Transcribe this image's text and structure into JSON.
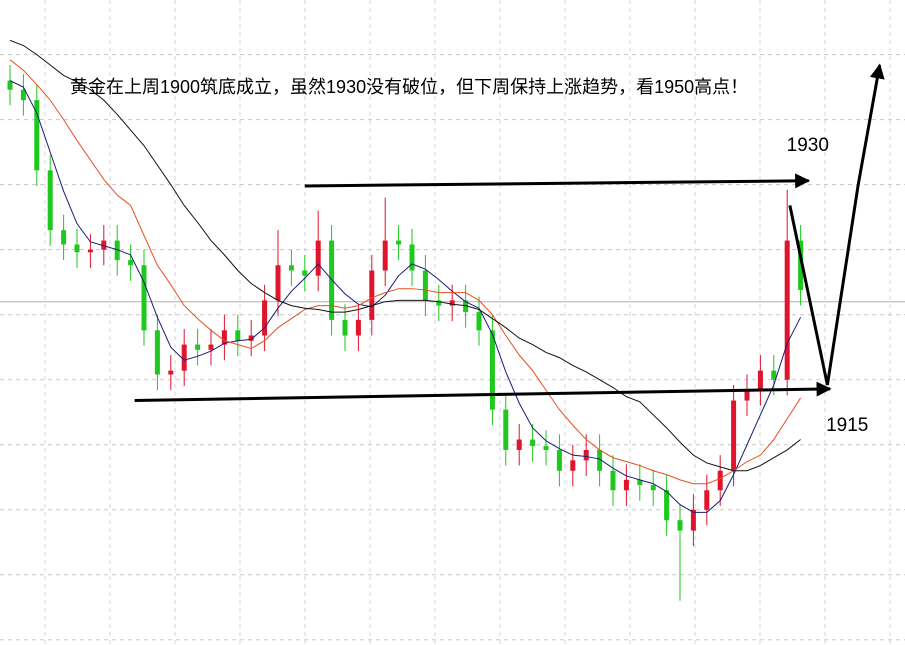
{
  "chart_data": {
    "type": "candlestick",
    "title": "黄金在上周1900筑底成立，虽然1930没有破位，但下周保持上涨趋势，看1950高点！",
    "ylim": [
      1894.6,
      1944.2
    ],
    "grid_levels": [
      1940,
      1935,
      1930,
      1925,
      1920,
      1915,
      1910,
      1905,
      1900,
      1895
    ],
    "price_line": 1921.0,
    "up_color": "#e0142c",
    "down_color": "#1ec81e",
    "open": [
      1938.0,
      1937.3,
      1936.5,
      1931.1,
      1926.5,
      1925.4,
      1924.8,
      1925.0,
      1925.7,
      1924.2,
      1923.8,
      1918.8,
      1915.4,
      1915.7,
      1917.7,
      1917.3,
      1917.7,
      1918.8,
      1918.0,
      1918.4,
      1921.1,
      1923.8,
      1923.4,
      1923.0,
      1925.7,
      1919.6,
      1918.4,
      1919.6,
      1923.4,
      1925.7,
      1925.4,
      1923.4,
      1921.1,
      1920.7,
      1921.1,
      1920.2,
      1918.8,
      1912.7,
      1909.6,
      1910.4,
      1909.9,
      1909.6,
      1908.0,
      1908.8,
      1909.6,
      1908.0,
      1906.5,
      1907.3,
      1906.9,
      1906.5,
      1904.2,
      1903.4,
      1905.0,
      1906.5,
      1908.0,
      1913.4,
      1914.2,
      1915.7,
      1915.0,
      1925.7
    ],
    "high": [
      1939.2,
      1938.5,
      1937.7,
      1932.3,
      1927.7,
      1926.6,
      1926.2,
      1926.9,
      1926.9,
      1925.4,
      1925.0,
      1920.0,
      1916.9,
      1918.9,
      1918.9,
      1918.9,
      1920.0,
      1920.0,
      1919.6,
      1922.3,
      1926.5,
      1925.0,
      1924.6,
      1928.0,
      1926.9,
      1920.8,
      1920.8,
      1924.6,
      1929.0,
      1926.9,
      1926.6,
      1924.6,
      1922.3,
      1922.3,
      1922.3,
      1921.4,
      1920.0,
      1913.9,
      1911.6,
      1911.6,
      1911.1,
      1910.8,
      1910.0,
      1910.8,
      1910.8,
      1909.2,
      1908.5,
      1908.5,
      1908.1,
      1907.7,
      1905.4,
      1906.2,
      1907.7,
      1909.2,
      1914.6,
      1915.4,
      1916.9,
      1916.9,
      1929.6,
      1926.9
    ],
    "low": [
      1936.1,
      1935.3,
      1929.9,
      1925.3,
      1924.2,
      1923.6,
      1923.6,
      1923.8,
      1923.0,
      1922.6,
      1917.6,
      1914.2,
      1914.2,
      1914.5,
      1916.1,
      1916.1,
      1916.5,
      1916.8,
      1916.8,
      1917.2,
      1919.9,
      1922.2,
      1921.8,
      1921.8,
      1918.4,
      1917.2,
      1917.2,
      1918.4,
      1922.2,
      1924.2,
      1922.2,
      1919.9,
      1919.5,
      1919.5,
      1919.0,
      1917.6,
      1911.5,
      1908.4,
      1908.4,
      1908.7,
      1908.4,
      1906.8,
      1906.8,
      1907.6,
      1906.8,
      1905.3,
      1905.3,
      1905.7,
      1905.3,
      1903.0,
      1898.0,
      1902.2,
      1903.8,
      1905.3,
      1906.8,
      1912.2,
      1913.0,
      1913.8,
      1913.8,
      1920.7
    ],
    "close": [
      1937.3,
      1936.5,
      1931.1,
      1926.5,
      1925.4,
      1924.8,
      1925.0,
      1925.7,
      1924.2,
      1923.8,
      1918.8,
      1915.4,
      1915.7,
      1917.7,
      1917.3,
      1917.7,
      1918.8,
      1918.0,
      1918.4,
      1921.1,
      1923.8,
      1923.4,
      1923.0,
      1925.7,
      1919.6,
      1918.4,
      1919.6,
      1923.4,
      1925.7,
      1925.4,
      1923.4,
      1921.1,
      1920.7,
      1921.1,
      1920.2,
      1918.8,
      1912.7,
      1909.6,
      1910.4,
      1909.9,
      1909.6,
      1908.0,
      1908.8,
      1909.6,
      1908.0,
      1906.5,
      1907.3,
      1906.9,
      1906.5,
      1904.2,
      1903.4,
      1905.0,
      1906.5,
      1908.0,
      1913.4,
      1914.2,
      1915.7,
      1915.0,
      1925.7,
      1921.9
    ],
    "moving_averages": [
      {
        "color": "#1a1a7a",
        "values": [
          1938.0,
          1937.5,
          1935.5,
          1932.5,
          1929.5,
          1927.0,
          1925.6,
          1925.3,
          1925.0,
          1924.6,
          1922.5,
          1919.8,
          1917.5,
          1916.5,
          1916.8,
          1917.2,
          1917.8,
          1918.0,
          1918.1,
          1919.0,
          1920.5,
          1921.8,
          1922.8,
          1923.9,
          1922.7,
          1921.6,
          1920.8,
          1920.6,
          1921.5,
          1923.0,
          1923.9,
          1923.5,
          1922.7,
          1921.8,
          1921.0,
          1920.5,
          1918.5,
          1915.6,
          1913.2,
          1911.3,
          1910.3,
          1909.7,
          1909.2,
          1909.1,
          1908.9,
          1908.2,
          1907.6,
          1907.3,
          1907.0,
          1906.4,
          1905.4,
          1904.8,
          1904.8,
          1905.7,
          1907.7,
          1910.0,
          1912.3,
          1914.6,
          1917.8,
          1919.8
        ]
      },
      {
        "color": "#e8501e",
        "values": [
          1939.6,
          1938.8,
          1937.7,
          1936.5,
          1935.0,
          1933.4,
          1931.9,
          1930.4,
          1929.2,
          1928.4,
          1926.1,
          1923.8,
          1922.3,
          1920.7,
          1919.7,
          1918.8,
          1918.0,
          1917.7,
          1917.4,
          1918.0,
          1919.0,
          1919.7,
          1920.4,
          1920.7,
          1920.7,
          1920.5,
          1920.7,
          1921.3,
          1921.7,
          1922.0,
          1922.0,
          1921.9,
          1921.7,
          1921.7,
          1921.7,
          1921.1,
          1920.0,
          1918.4,
          1916.9,
          1915.7,
          1914.2,
          1912.7,
          1911.5,
          1910.4,
          1909.6,
          1909.0,
          1908.7,
          1908.4,
          1908.0,
          1907.7,
          1907.3,
          1907.0,
          1907.0,
          1907.4,
          1908.0,
          1908.7,
          1909.2,
          1910.4,
          1912.0,
          1913.6
        ]
      },
      {
        "color": "#111111",
        "values": [
          1941.1,
          1940.7,
          1940.0,
          1939.2,
          1938.4,
          1937.9,
          1937.3,
          1936.5,
          1935.4,
          1934.2,
          1933.0,
          1931.5,
          1930.0,
          1928.4,
          1927.1,
          1925.7,
          1924.6,
          1923.4,
          1922.4,
          1921.7,
          1921.1,
          1920.7,
          1920.5,
          1920.4,
          1920.2,
          1920.2,
          1920.4,
          1920.7,
          1921.0,
          1921.1,
          1921.1,
          1921.1,
          1921.0,
          1920.8,
          1920.7,
          1920.4,
          1919.7,
          1919.0,
          1918.2,
          1917.7,
          1917.1,
          1916.7,
          1916.1,
          1915.6,
          1915.0,
          1914.4,
          1913.7,
          1913.3,
          1912.3,
          1911.3,
          1910.2,
          1909.2,
          1908.6,
          1908.3,
          1908.0,
          1908.0,
          1908.4,
          1909.0,
          1909.6,
          1910.4
        ]
      }
    ],
    "annotations": [
      {
        "label": "1930",
        "x": [
          22.0,
          59.6
        ],
        "values": [
          1929.9,
          1930.3
        ]
      },
      {
        "label": "1915",
        "x": [
          9.3,
          61.2
        ],
        "values": [
          1913.4,
          1914.3
        ]
      },
      {
        "x": [
          58.2,
          61.0,
          63.3,
          64.9
        ],
        "values": [
          1928.4,
          1914.6,
          1930.0,
          1939.2
        ]
      }
    ]
  }
}
